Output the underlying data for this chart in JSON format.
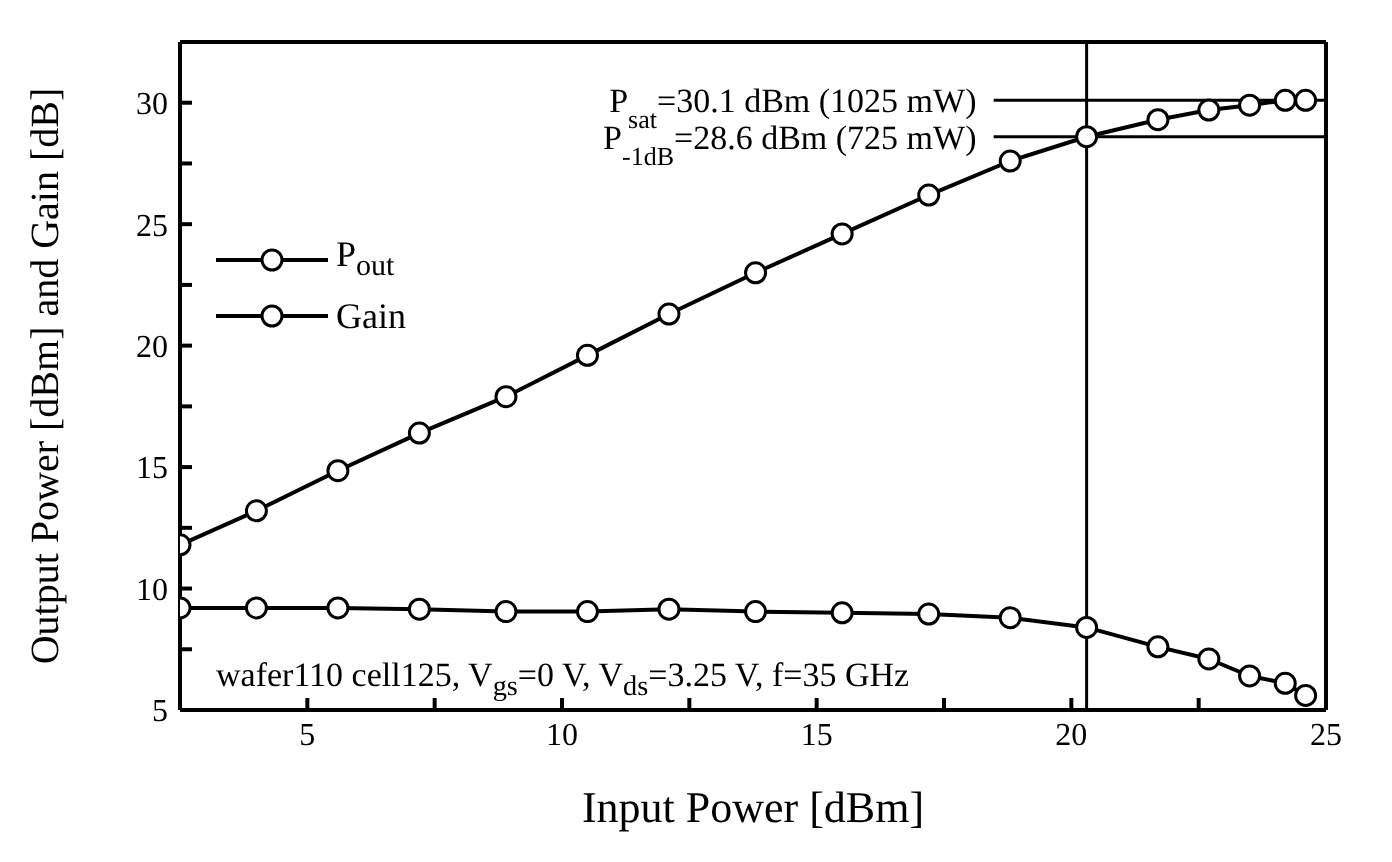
{
  "chart_data": {
    "type": "line",
    "xlabel": "Input Power [dBm]",
    "ylabel": "Output Power [dBm] and Gain [dB]",
    "x": [
      2.5,
      4,
      5.6,
      7.2,
      8.9,
      10.5,
      12.1,
      13.8,
      15.5,
      17.2,
      18.8,
      20.3,
      21.7,
      22.7,
      23.5,
      24.2,
      24.6
    ],
    "series": [
      {
        "name": "P$_{out}$",
        "color": "#000000",
        "values": [
          11.8,
          13.2,
          14.85,
          16.4,
          17.9,
          19.6,
          21.3,
          23.0,
          24.6,
          26.2,
          27.6,
          28.6,
          29.3,
          29.7,
          29.9,
          30.1,
          30.1
        ]
      },
      {
        "name": "Gain",
        "color": "#000000",
        "values": [
          9.2,
          9.2,
          9.2,
          9.15,
          9.05,
          9.05,
          9.15,
          9.05,
          9.0,
          8.95,
          8.8,
          8.4,
          7.6,
          7.1,
          6.4,
          6.1,
          5.6
        ]
      }
    ],
    "xlim": [
      2.5,
      25
    ],
    "xticks": [
      5,
      {
        "value": 7.5,
        "label": null
      },
      10,
      {
        "value": 12.5,
        "label": null
      },
      15,
      {
        "value": 17.5,
        "label": null
      },
      20,
      {
        "value": 22.5,
        "label": null
      },
      25
    ],
    "ylim": [
      5,
      32.5
    ],
    "yticks": [
      5,
      {
        "value": 7.5,
        "label": null
      },
      10,
      {
        "value": 12.5,
        "label": null
      },
      15,
      {
        "value": 17.5,
        "label": null
      },
      20,
      {
        "value": 22.5,
        "label": null
      },
      25,
      {
        "value": 27.5,
        "label": null
      },
      30,
      {
        "value": 32.5,
        "label": null
      }
    ],
    "ref_lines": [
      {
        "axis": "x",
        "value": 20.3,
        "color": "#000000"
      },
      {
        "axis": "y",
        "value": 30.1,
        "label": "P$_{sat}$=30.1 dBm (1025 mW)",
        "color": "#000000"
      },
      {
        "axis": "y",
        "value": 28.6,
        "label": "P$_{-1dB}$=28.6 dBm (725 mW)",
        "color": "#000000"
      }
    ],
    "annotations": [
      "wafer110 cell125, V$_{gs}$=0 V, V$_{ds}$=3.25 V, f=35 GHz"
    ],
    "legend": "top left",
    "marker": "circle",
    "line_style": "solid",
    "grid": false
  }
}
